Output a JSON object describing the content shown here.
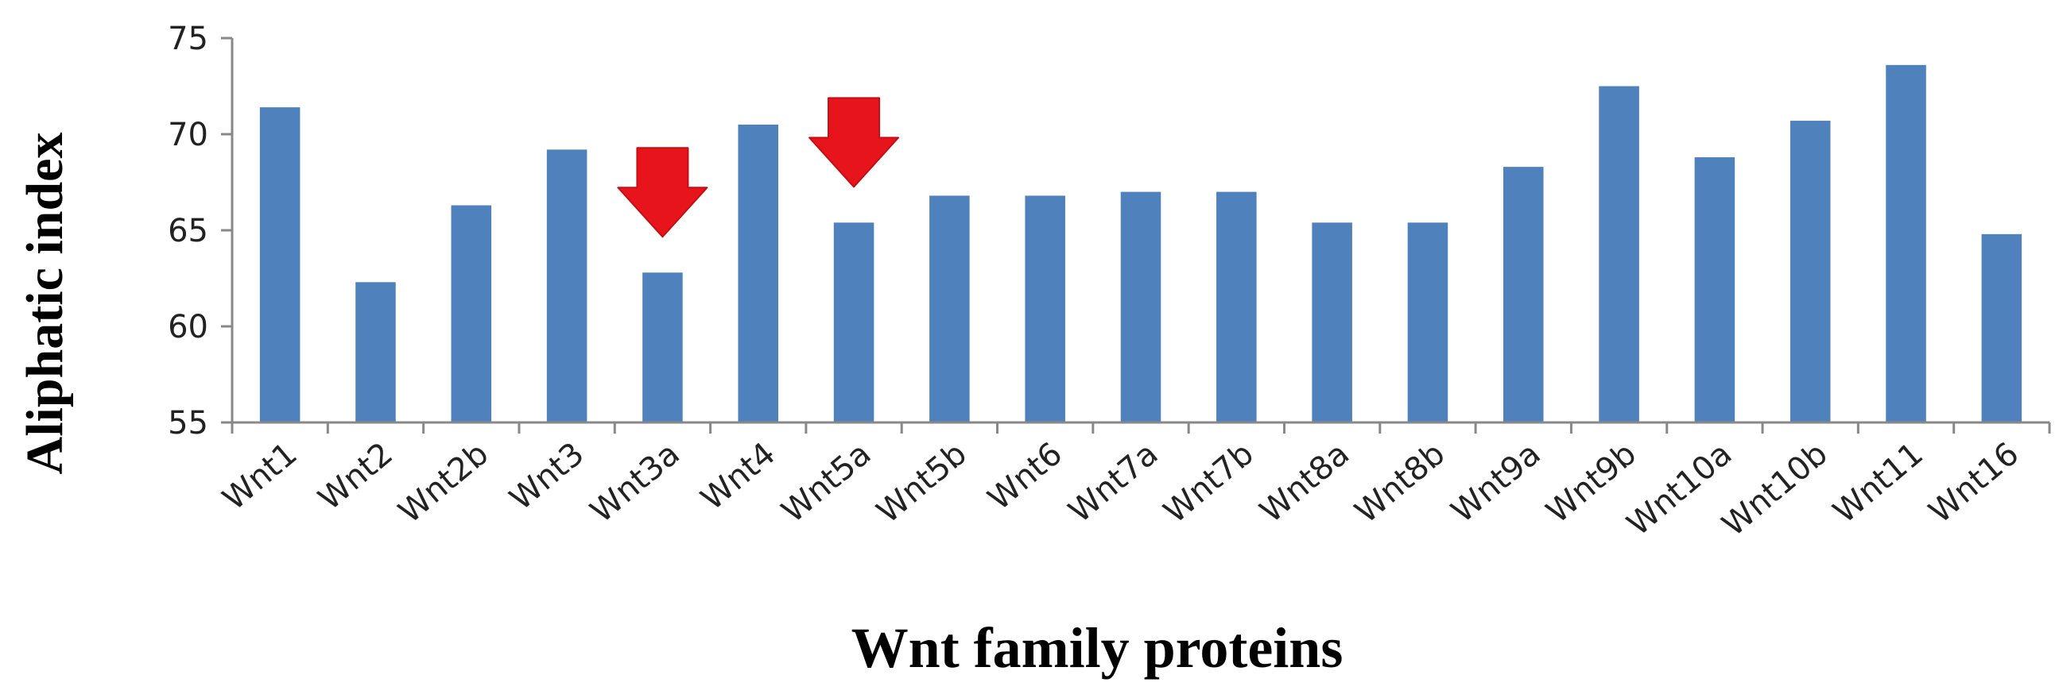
{
  "chart_data": {
    "type": "bar",
    "xlabel": "Wnt family proteins",
    "ylabel": "Aliphatic index",
    "ylim": [
      55,
      75
    ],
    "yticks": [
      "55",
      "60",
      "65",
      "70",
      "75"
    ],
    "categories": [
      "Wnt1",
      "Wnt2",
      "Wnt2b",
      "Wnt3",
      "Wnt3a",
      "Wnt4",
      "Wnt5a",
      "Wnt5b",
      "Wnt6",
      "Wnt7a",
      "Wnt7b",
      "Wnt8a",
      "Wnt8b",
      "Wnt9a",
      "Wnt9b",
      "Wnt10a",
      "Wnt10b",
      "Wnt11",
      "Wnt16"
    ],
    "values": [
      71.4,
      62.3,
      66.3,
      69.2,
      62.8,
      70.5,
      65.4,
      66.8,
      66.8,
      67.0,
      67.0,
      65.4,
      65.4,
      68.3,
      72.5,
      68.8,
      70.7,
      73.6,
      64.8
    ],
    "grid": false,
    "legend": "none",
    "highlighted": [
      "Wnt3a",
      "Wnt5a"
    ],
    "colors": {
      "bar": "#4f81bd",
      "arrow": "#e8141c",
      "axis": "#888888"
    }
  }
}
